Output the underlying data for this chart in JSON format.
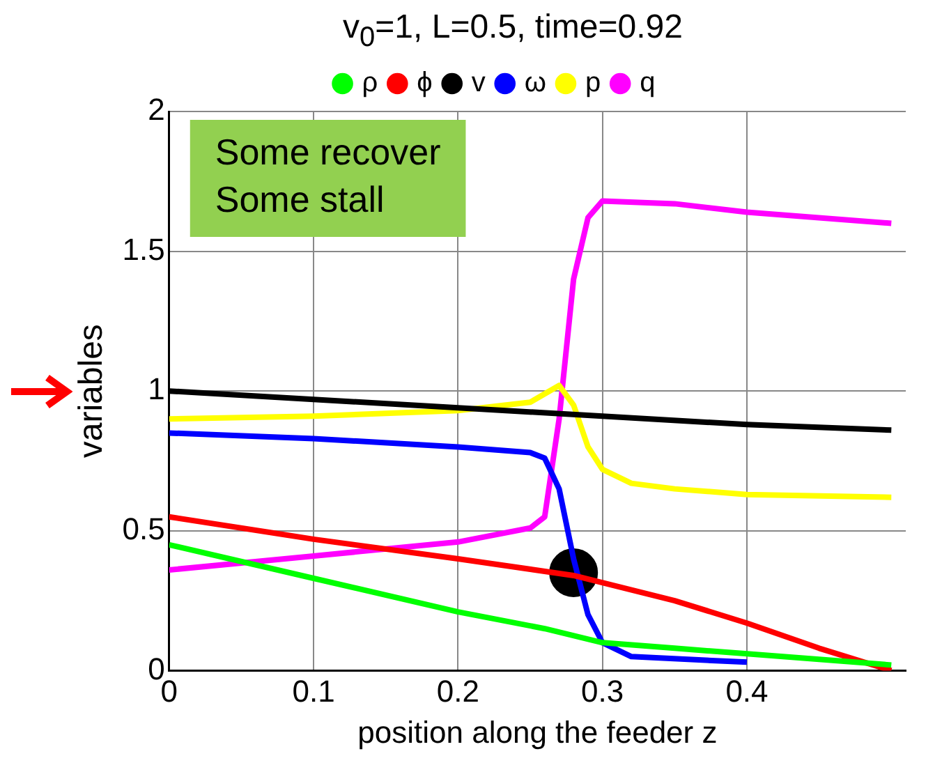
{
  "chart_data": {
    "type": "line",
    "title": "v$_{0}$=1, L=0.5, time=0.92",
    "xlabel": "position along the feeder z",
    "ylabel": "variables",
    "xlim": [
      0,
      0.51
    ],
    "ylim": [
      0,
      2
    ],
    "xticks": [
      0,
      0.1,
      0.2,
      0.3,
      0.4
    ],
    "yticks": [
      0,
      0.5,
      1,
      1.5,
      2
    ],
    "grid": true,
    "legend": "top",
    "marker": "none",
    "line_style": "solid",
    "annotations": [
      "Some recover",
      "Some stall"
    ],
    "series": [
      {
        "name": "ρ",
        "color": "#00ff00",
        "x": [
          0,
          0.1,
          0.2,
          0.26,
          0.3,
          0.35,
          0.4,
          0.45,
          0.5
        ],
        "values": [
          0.45,
          0.33,
          0.21,
          0.15,
          0.1,
          0.08,
          0.06,
          0.04,
          0.02
        ]
      },
      {
        "name": "ϕ",
        "color": "#ff0000",
        "x": [
          0,
          0.1,
          0.2,
          0.28,
          0.35,
          0.4,
          0.45,
          0.5
        ],
        "values": [
          0.55,
          0.47,
          0.4,
          0.34,
          0.25,
          0.17,
          0.08,
          0.0
        ]
      },
      {
        "name": "v",
        "color": "#000000",
        "x": [
          0,
          0.1,
          0.2,
          0.3,
          0.4,
          0.5
        ],
        "values": [
          1.0,
          0.97,
          0.94,
          0.91,
          0.88,
          0.86
        ]
      },
      {
        "name": "ω",
        "color": "#0000ff",
        "x": [
          0,
          0.1,
          0.2,
          0.25,
          0.26,
          0.27,
          0.28,
          0.29,
          0.3,
          0.32,
          0.4
        ],
        "values": [
          0.85,
          0.83,
          0.8,
          0.78,
          0.76,
          0.65,
          0.4,
          0.2,
          0.1,
          0.05,
          0.03
        ]
      },
      {
        "name": "p",
        "color": "#ffff00",
        "x": [
          0,
          0.1,
          0.2,
          0.25,
          0.27,
          0.28,
          0.29,
          0.3,
          0.32,
          0.35,
          0.4,
          0.5
        ],
        "values": [
          0.9,
          0.91,
          0.93,
          0.96,
          1.02,
          0.95,
          0.8,
          0.72,
          0.67,
          0.65,
          0.63,
          0.62
        ]
      },
      {
        "name": "q",
        "color": "#ff00ff",
        "x": [
          0,
          0.1,
          0.2,
          0.25,
          0.26,
          0.27,
          0.28,
          0.29,
          0.3,
          0.35,
          0.4,
          0.5
        ],
        "values": [
          0.36,
          0.41,
          0.46,
          0.51,
          0.55,
          0.9,
          1.4,
          1.62,
          1.68,
          1.67,
          1.64,
          1.6
        ]
      },
      {
        "type": "scatter",
        "color": "#000000",
        "marker": "circle",
        "x": [
          0.28
        ],
        "values": [
          0.35
        ]
      }
    ]
  }
}
